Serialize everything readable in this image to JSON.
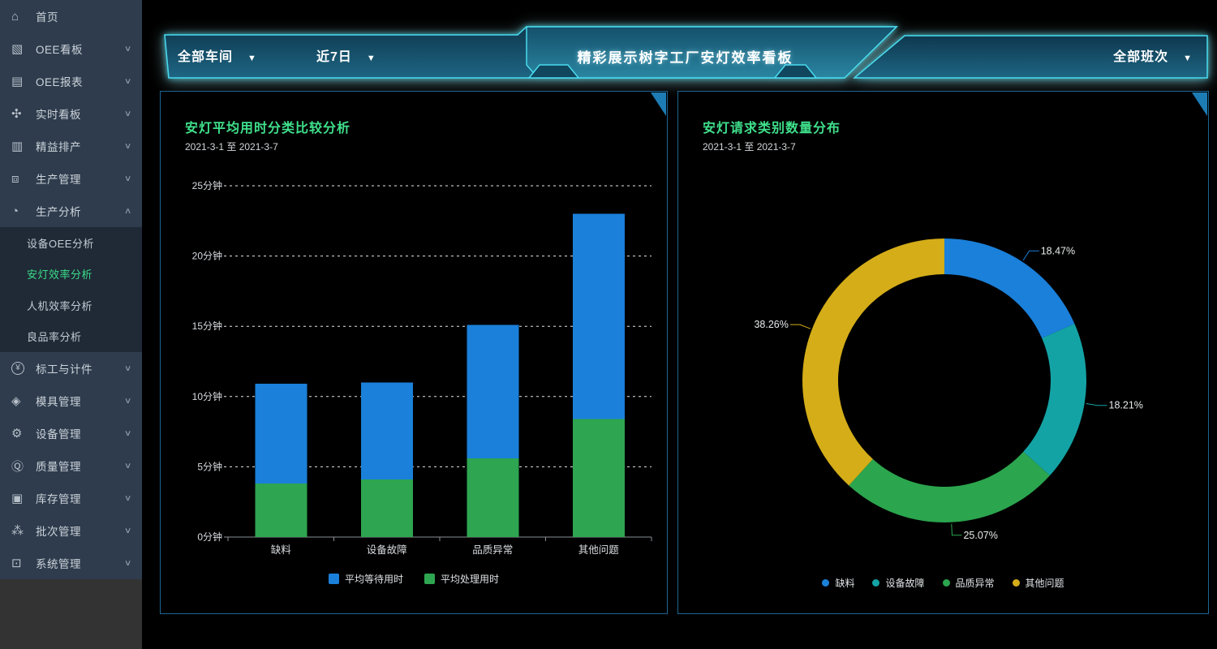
{
  "colors": {
    "accent_cyan": "#49dbee",
    "panel_border": "#1c6494",
    "corner_triangle": "#1e7cb4",
    "title_green": "#3fe08b",
    "sidebar_bg": "#2e3c4d",
    "submenu_bg": "#1f2a36",
    "sidebar_active_green": "#3bdc8a",
    "bar_blue": "#1a80da",
    "bar_green": "#2ea550",
    "donut_teal": "#14a3a5",
    "donut_yellow": "#d4ad18"
  },
  "sidebar": {
    "items": [
      {
        "id": "home",
        "label": "首页",
        "icon": "home-icon",
        "glyph": "⌂",
        "expandable": false
      },
      {
        "id": "oee-board",
        "label": "OEE看板",
        "icon": "oee-dashboard-icon",
        "glyph": "▧",
        "expandable": true
      },
      {
        "id": "oee-report",
        "label": "OEE报表",
        "icon": "oee-report-icon",
        "glyph": "▤",
        "expandable": true
      },
      {
        "id": "realtime-board",
        "label": "实时看板",
        "icon": "realtime-fan-icon",
        "glyph": "✣",
        "expandable": true
      },
      {
        "id": "lean-scheduling",
        "label": "精益排产",
        "icon": "schedule-icon",
        "glyph": "▥",
        "expandable": true
      },
      {
        "id": "production-mgmt",
        "label": "生产管理",
        "icon": "production-box-icon",
        "glyph": "⧈",
        "expandable": true
      },
      {
        "id": "production-analysis",
        "label": "生产分析",
        "icon": "pie-analysis-icon",
        "glyph": "◔",
        "expandable": true,
        "expanded": true,
        "children": [
          {
            "id": "equipment-oee-analysis",
            "label": "设备OEE分析",
            "active": false
          },
          {
            "id": "andon-efficiency-analysis",
            "label": "安灯效率分析",
            "active": true
          },
          {
            "id": "man-machine-analysis",
            "label": "人机效率分析",
            "active": false
          },
          {
            "id": "yield-analysis",
            "label": "良品率分析",
            "active": false
          }
        ]
      },
      {
        "id": "piecework",
        "label": "标工与计件",
        "icon": "yen-piecework-icon",
        "glyph": "¥",
        "circled": true,
        "expandable": true
      },
      {
        "id": "mold-mgmt",
        "label": "模具管理",
        "icon": "mold-icon",
        "glyph": "◈",
        "expandable": true
      },
      {
        "id": "equipment-mgmt",
        "label": "设备管理",
        "icon": "equipment-icon",
        "glyph": "⚙",
        "expandable": true
      },
      {
        "id": "quality-mgmt",
        "label": "质量管理",
        "icon": "quality-shield-icon",
        "glyph": "Ⓠ",
        "expandable": true
      },
      {
        "id": "inventory-mgmt",
        "label": "库存管理",
        "icon": "inventory-box-icon",
        "glyph": "▣",
        "expandable": true
      },
      {
        "id": "batch-mgmt",
        "label": "批次管理",
        "icon": "batch-nodes-icon",
        "glyph": "⁂",
        "expandable": true
      },
      {
        "id": "system-mgmt",
        "label": "系统管理",
        "icon": "system-monitor-icon",
        "glyph": "⊡",
        "expandable": true
      }
    ],
    "chevron_down": "∨",
    "chevron_up": "∧"
  },
  "header": {
    "workshop_filter": "全部车间",
    "date_filter": "近7日",
    "shift_filter": "全部班次",
    "caret": "▼",
    "title": "精彩展示树字工厂安灯效率看板"
  },
  "chart_data": [
    {
      "type": "bar",
      "stacked": true,
      "title": "安灯平均用时分类比较分析",
      "subtitle": "2021-3-1 至 2021-3-7",
      "categories": [
        "缺料",
        "设备故障",
        "品质异常",
        "其他问题"
      ],
      "series": [
        {
          "name": "平均等待用时",
          "color": "#1a80da",
          "stack_position": "top",
          "values": [
            7.1,
            6.9,
            9.5,
            14.6
          ]
        },
        {
          "name": "平均处理用时",
          "color": "#2ea550",
          "stack_position": "bottom",
          "values": [
            3.8,
            4.1,
            5.6,
            8.4
          ]
        }
      ],
      "yticks": [
        "0分钟",
        "5分钟",
        "10分钟",
        "15分钟",
        "20分钟",
        "25分钟"
      ],
      "ylim": [
        0,
        25
      ],
      "y_step": 5,
      "grid": "dashed-horizontal",
      "legend_position": "bottom"
    },
    {
      "type": "donut",
      "title": "安灯请求类别数量分布",
      "subtitle": "2021-3-1 至 2021-3-7",
      "start_angle": "top",
      "direction": "clockwise",
      "legend_position": "bottom",
      "slices": [
        {
          "label": "缺料",
          "value": 18.47,
          "display": "18.47%",
          "color": "#1a80da"
        },
        {
          "label": "设备故障",
          "value": 18.21,
          "display": "18.21%",
          "color": "#14a3a5"
        },
        {
          "label": "品质异常",
          "value": 25.07,
          "display": "25.07%",
          "color": "#2ba54e"
        },
        {
          "label": "其他问题",
          "value": 38.26,
          "display": "38.26%",
          "color": "#d4ad18"
        }
      ]
    }
  ]
}
